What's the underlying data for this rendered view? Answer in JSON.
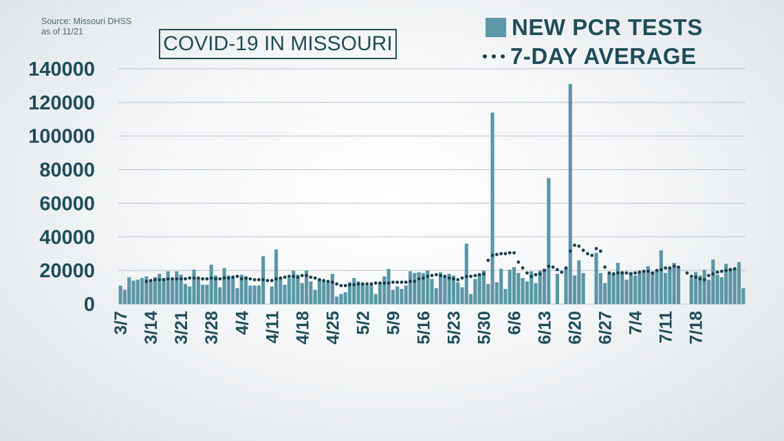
{
  "source": {
    "line1": "Source: Missouri DHSS",
    "line2": "as of 11/21"
  },
  "colors": {
    "bar": "#5b97a6",
    "dots": "#1a3f4d",
    "text": "#1f4d5a",
    "grid": "#b8c2c6"
  },
  "chart_data": {
    "type": "bar",
    "title": "COVID-19 IN MISSOURI",
    "series": [
      {
        "name": "NEW PCR TESTS",
        "kind": "bar"
      },
      {
        "name": "7-DAY AVERAGE",
        "kind": "dotted-line"
      }
    ],
    "ylim": [
      0,
      140000
    ],
    "yticks": [
      0,
      20000,
      40000,
      60000,
      80000,
      100000,
      120000,
      140000
    ],
    "x_start": "3/7",
    "xticks": [
      "3/7",
      "3/14",
      "3/21",
      "3/28",
      "4/4",
      "4/11",
      "4/18",
      "4/25",
      "5/2",
      "5/9",
      "5/16",
      "5/23",
      "5/30",
      "6/6",
      "6/13",
      "6/20",
      "6/27",
      "7/4",
      "7/11",
      "7/18"
    ],
    "grid": true,
    "legend_position": "top-right",
    "values": [
      11000,
      8500,
      16000,
      14000,
      14500,
      15500,
      16500,
      13500,
      16000,
      18000,
      15500,
      19500,
      15000,
      19500,
      17500,
      12000,
      10500,
      20500,
      15500,
      11500,
      11500,
      23500,
      17000,
      10000,
      21500,
      17000,
      15500,
      9500,
      17500,
      16500,
      11000,
      11000,
      11000,
      28500,
      0,
      10500,
      32500,
      15500,
      11500,
      15500,
      20000,
      17500,
      12500,
      20000,
      13500,
      8500,
      15000,
      13500,
      13000,
      18000,
      4500,
      6000,
      7000,
      13000,
      15500,
      13500,
      12000,
      11000,
      11500,
      6000,
      12500,
      16500,
      21000,
      8500,
      10500,
      9000,
      11000,
      19500,
      18500,
      19000,
      18500,
      20000,
      15000,
      9500,
      19000,
      16500,
      18000,
      17000,
      13000,
      10000,
      36000,
      6000,
      15000,
      17500,
      20000,
      12000,
      114000,
      13000,
      21000,
      9000,
      20500,
      22000,
      18500,
      15500,
      13500,
      19500,
      12500,
      20000,
      21000,
      75000,
      0,
      18000,
      0,
      21500,
      131000,
      17000,
      26000,
      18500,
      0,
      0,
      30500,
      18500,
      12500,
      18000,
      18500,
      24500,
      19500,
      14500,
      19000,
      17000,
      18500,
      20000,
      22500,
      19000,
      20000,
      32000,
      18500,
      21500,
      24500,
      22500,
      0,
      0,
      15500,
      19000,
      17000,
      20500,
      14500,
      26500,
      17500,
      16000,
      24000,
      21000,
      21500,
      25000,
      9500
    ],
    "avg_values": [
      null,
      null,
      null,
      null,
      null,
      null,
      13500,
      14000,
      14500,
      14500,
      14500,
      15000,
      15000,
      15000,
      15000,
      15000,
      15500,
      15500,
      15500,
      15000,
      15000,
      15500,
      15000,
      15000,
      15500,
      15500,
      16000,
      16500,
      15000,
      15500,
      15000,
      14500,
      14500,
      14500,
      14000,
      14000,
      15000,
      15500,
      16000,
      16500,
      16500,
      16000,
      17000,
      17000,
      16000,
      15500,
      14500,
      14000,
      13500,
      13000,
      12000,
      11000,
      11000,
      11500,
      11500,
      12000,
      12000,
      12000,
      12000,
      12500,
      12500,
      12500,
      12500,
      13000,
      13000,
      13000,
      13000,
      13500,
      13500,
      15000,
      15500,
      16500,
      17000,
      17500,
      17000,
      16500,
      15500,
      15000,
      14500,
      15500,
      16500,
      16500,
      17000,
      17500,
      18000,
      26000,
      29000,
      29500,
      30000,
      30000,
      30500,
      30500,
      25000,
      21500,
      18500,
      16500,
      17500,
      18000,
      20000,
      22500,
      22000,
      20500,
      19000,
      21500,
      31500,
      35000,
      34500,
      32000,
      30000,
      29000,
      33000,
      31500,
      22000,
      18500,
      18000,
      18500,
      18500,
      18500,
      18000,
      18500,
      19000,
      19500,
      19500,
      18500,
      20000,
      20500,
      21500,
      21500,
      22500,
      22000,
      null,
      18500,
      16500,
      16000,
      15000,
      14500,
      17000,
      18000,
      19000,
      19500,
      20000,
      20500,
      21000
    ]
  }
}
